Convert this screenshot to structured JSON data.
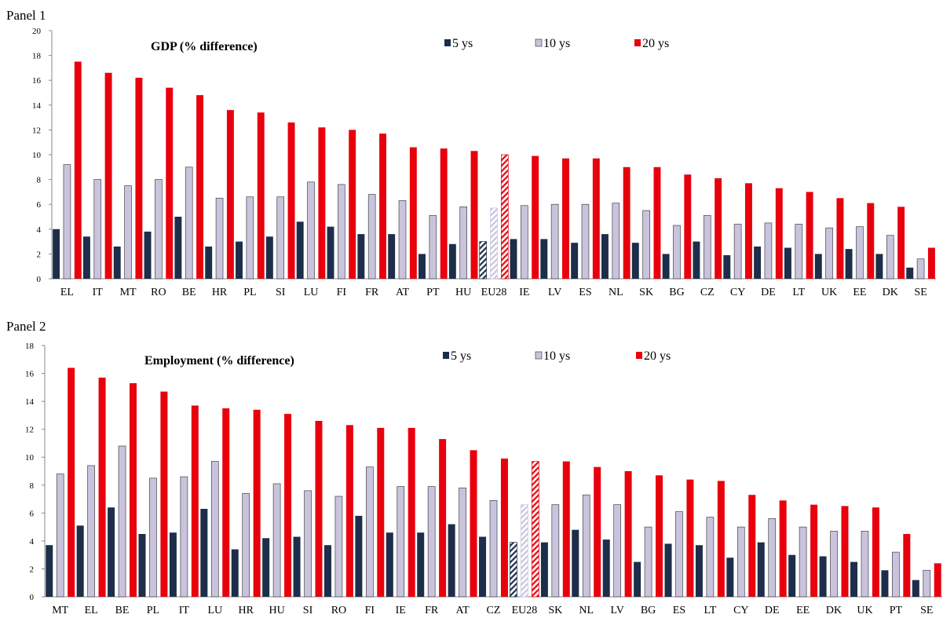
{
  "panels": [
    {
      "label": "Panel 1"
    },
    {
      "label": "Panel 2"
    }
  ],
  "colors": {
    "s5": "#1c2e4a",
    "s10": "#c9c3dd",
    "s20": "#e8000c",
    "outline": "#444444"
  },
  "chart_data": [
    {
      "type": "bar",
      "title": "GDP (% difference)",
      "ylim": [
        0,
        20
      ],
      "yticks": [
        0,
        2,
        4,
        6,
        8,
        10,
        12,
        14,
        16,
        18,
        20
      ],
      "legend_position": "top-center",
      "highlight_category": "EU28",
      "categories": [
        "EL",
        "IT",
        "MT",
        "RO",
        "BE",
        "HR",
        "PL",
        "SI",
        "LU",
        "FI",
        "FR",
        "AT",
        "PT",
        "HU",
        "EU28",
        "IE",
        "LV",
        "ES",
        "NL",
        "SK",
        "BG",
        "CZ",
        "CY",
        "DE",
        "LT",
        "UK",
        "EE",
        "DK",
        "SE"
      ],
      "series": [
        {
          "name": "5 ys",
          "values": [
            4.0,
            3.4,
            2.6,
            3.8,
            5.0,
            2.6,
            3.0,
            3.4,
            4.6,
            4.2,
            3.6,
            3.6,
            2.0,
            2.8,
            3.0,
            3.2,
            3.2,
            2.9,
            3.6,
            2.9,
            2.0,
            3.0,
            1.9,
            2.6,
            2.5,
            2.0,
            2.4,
            2.0,
            0.9
          ]
        },
        {
          "name": "10 ys",
          "values": [
            9.2,
            8.0,
            7.5,
            8.0,
            9.0,
            6.5,
            6.6,
            6.6,
            7.8,
            7.6,
            6.8,
            6.3,
            5.1,
            5.8,
            5.7,
            5.9,
            6.0,
            6.0,
            6.1,
            5.5,
            4.3,
            5.1,
            4.4,
            4.5,
            4.4,
            4.1,
            4.2,
            3.5,
            1.6
          ]
        },
        {
          "name": "20 ys",
          "values": [
            17.5,
            16.6,
            16.2,
            15.4,
            14.8,
            13.6,
            13.4,
            12.6,
            12.2,
            12.0,
            11.7,
            10.6,
            10.5,
            10.3,
            10.0,
            9.9,
            9.7,
            9.7,
            9.0,
            9.0,
            8.4,
            8.1,
            7.7,
            7.3,
            7.0,
            6.5,
            6.1,
            5.8,
            2.5
          ]
        }
      ]
    },
    {
      "type": "bar",
      "title": "Employment (% difference)",
      "ylim": [
        0,
        18
      ],
      "yticks": [
        0,
        2,
        4,
        6,
        8,
        10,
        12,
        14,
        16,
        18
      ],
      "legend_position": "top-center",
      "highlight_category": "EU28",
      "categories": [
        "MT",
        "EL",
        "BE",
        "PL",
        "IT",
        "LU",
        "HR",
        "HU",
        "SI",
        "RO",
        "FI",
        "IE",
        "FR",
        "AT",
        "CZ",
        "EU28",
        "SK",
        "NL",
        "LV",
        "BG",
        "ES",
        "LT",
        "CY",
        "DE",
        "EE",
        "DK",
        "UK",
        "PT",
        "SE"
      ],
      "series": [
        {
          "name": "5 ys",
          "values": [
            3.7,
            5.1,
            6.4,
            4.5,
            4.6,
            6.3,
            3.4,
            4.2,
            4.3,
            3.7,
            5.8,
            4.6,
            4.6,
            5.2,
            4.3,
            3.9,
            3.9,
            4.8,
            4.1,
            2.5,
            3.8,
            3.7,
            2.8,
            3.9,
            3.0,
            2.9,
            2.5,
            1.9,
            1.2
          ]
        },
        {
          "name": "10 ys",
          "values": [
            8.8,
            9.4,
            10.8,
            8.5,
            8.6,
            9.7,
            7.4,
            8.1,
            7.6,
            7.2,
            9.3,
            7.9,
            7.9,
            7.8,
            6.9,
            6.6,
            6.6,
            7.3,
            6.6,
            5.0,
            6.1,
            5.7,
            5.0,
            5.6,
            5.0,
            4.7,
            4.7,
            3.2,
            1.9
          ]
        },
        {
          "name": "20 ys",
          "values": [
            16.4,
            15.7,
            15.3,
            14.7,
            13.7,
            13.5,
            13.4,
            13.1,
            12.6,
            12.3,
            12.1,
            12.1,
            11.3,
            10.5,
            9.9,
            9.7,
            9.7,
            9.3,
            9.0,
            8.7,
            8.4,
            8.3,
            7.3,
            6.9,
            6.6,
            6.5,
            6.4,
            4.5,
            2.4
          ]
        }
      ]
    }
  ]
}
